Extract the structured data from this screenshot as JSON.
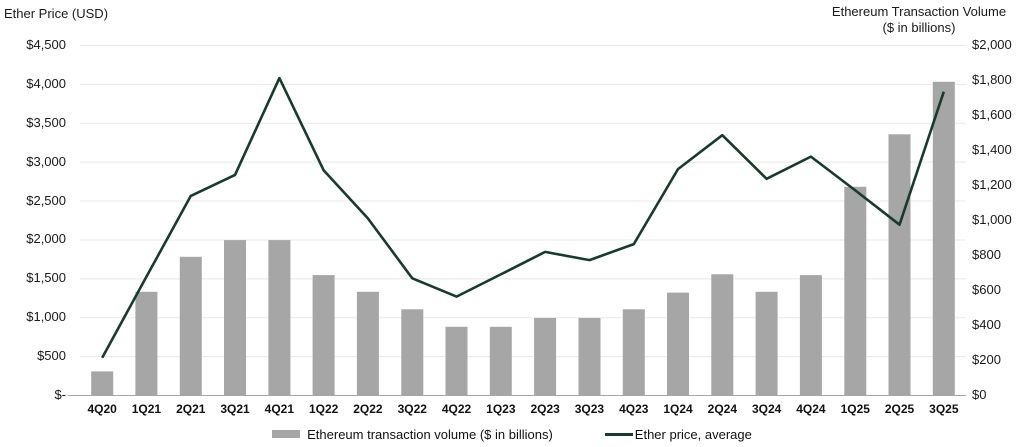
{
  "chart": {
    "left_axis_title": "Ether Price (USD)",
    "right_axis_title_line1": "Ethereum Transaction Volume",
    "right_axis_title_line2": "($ in billions)",
    "legend": {
      "bar_label": "Ethereum transaction volume ($ in billions)",
      "line_label": "Ether price, average"
    }
  },
  "chart_data": {
    "type": "combo",
    "title": "",
    "categories": [
      "4Q20",
      "1Q21",
      "2Q21",
      "3Q21",
      "4Q21",
      "1Q22",
      "2Q22",
      "3Q22",
      "4Q22",
      "1Q23",
      "2Q23",
      "3Q23",
      "4Q23",
      "1Q24",
      "2Q24",
      "3Q24",
      "4Q24",
      "1Q25",
      "2Q25",
      "3Q25"
    ],
    "series": [
      {
        "name": "Ethereum transaction volume ($ in billions)",
        "type": "bar",
        "axis": "right",
        "color": "#a6a6a6",
        "values": [
          135,
          590,
          790,
          885,
          885,
          685,
          590,
          490,
          390,
          390,
          440,
          440,
          490,
          585,
          690,
          590,
          685,
          1190,
          1490,
          1790
        ]
      },
      {
        "name": "Ether price, average",
        "type": "line",
        "axis": "left",
        "color": "#1a3a2b",
        "values": [
          480,
          1520,
          2560,
          2830,
          4075,
          2890,
          2270,
          1500,
          1265,
          1550,
          1840,
          1735,
          1940,
          2905,
          3340,
          2780,
          3065,
          2630,
          2190,
          3900
        ]
      }
    ],
    "left_axis": {
      "title": "Ether Price (USD)",
      "min": 0,
      "max": 4500,
      "tick_values": [
        0,
        500,
        1000,
        1500,
        2000,
        2500,
        3000,
        3500,
        4000,
        4500
      ],
      "tick_labels": [
        "$-",
        "$500",
        "$1,000",
        "$1,500",
        "$2,000",
        "$2,500",
        "$3,000",
        "$3,500",
        "$4,000",
        "$4,500"
      ]
    },
    "right_axis": {
      "title": "Ethereum Transaction Volume ($ in billions)",
      "min": 0,
      "max": 2000,
      "tick_values": [
        0,
        200,
        400,
        600,
        800,
        1000,
        1200,
        1400,
        1600,
        1800,
        2000
      ],
      "tick_labels": [
        "$0",
        "$200",
        "$400",
        "$600",
        "$800",
        "$1,000",
        "$1,200",
        "$1,400",
        "$1,600",
        "$1,800",
        "$2,000"
      ]
    },
    "grid": "horizontal",
    "gridline_color": "#e8e8e8",
    "baseline_color": "#a6a6a6",
    "legend_position": "bottom"
  }
}
